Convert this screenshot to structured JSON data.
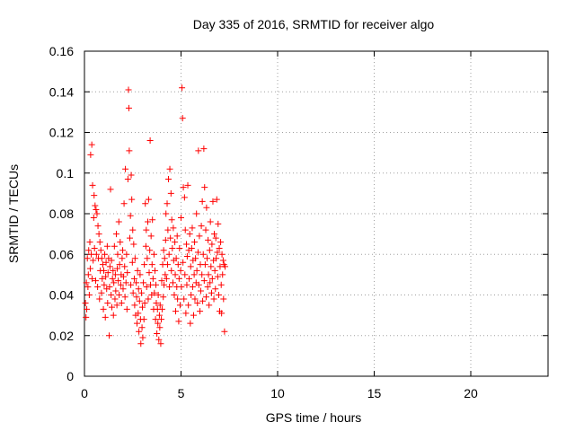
{
  "chart_data": {
    "type": "scatter",
    "title": "Day 335 of 2016, SRMTID for receiver algo",
    "xlabel": "GPS time / hours",
    "ylabel": "SRMTID / TECUs",
    "xlim": [
      0,
      24
    ],
    "ylim": [
      0,
      0.16
    ],
    "xticks": [
      0,
      5,
      10,
      15,
      20
    ],
    "xtick_labels": [
      "0",
      "5",
      "10",
      "15",
      "20"
    ],
    "yticks": [
      0,
      0.02,
      0.04,
      0.06,
      0.08,
      0.1,
      0.12,
      0.14,
      0.16
    ],
    "ytick_labels": [
      "0",
      "0.02",
      "0.04",
      "0.06",
      "0.08",
      "0.1",
      "0.12",
      "0.14",
      "0.16"
    ],
    "grid": true,
    "marker": "+",
    "marker_color": "#ff0000",
    "grid_color": "#a0a0a0",
    "series": [
      {
        "name": "SRMTID",
        "points": [
          [
            0.05,
            0.036
          ],
          [
            0.08,
            0.029
          ],
          [
            0.1,
            0.046
          ],
          [
            0.12,
            0.033
          ],
          [
            0.15,
            0.058
          ],
          [
            0.18,
            0.044
          ],
          [
            0.2,
            0.05
          ],
          [
            0.22,
            0.062
          ],
          [
            0.25,
            0.04
          ],
          [
            0.28,
            0.066
          ],
          [
            0.3,
            0.053
          ],
          [
            0.32,
            0.109
          ],
          [
            0.35,
            0.06
          ],
          [
            0.38,
            0.114
          ],
          [
            0.4,
            0.048
          ],
          [
            0.42,
            0.094
          ],
          [
            0.45,
            0.057
          ],
          [
            0.48,
            0.078
          ],
          [
            0.5,
            0.089
          ],
          [
            0.52,
            0.063
          ],
          [
            0.55,
            0.084
          ],
          [
            0.58,
            0.047
          ],
          [
            0.6,
            0.082
          ],
          [
            0.62,
            0.06
          ],
          [
            0.65,
            0.08
          ],
          [
            0.68,
            0.044
          ],
          [
            0.7,
            0.074
          ],
          [
            0.72,
            0.058
          ],
          [
            0.75,
            0.07
          ],
          [
            0.78,
            0.038
          ],
          [
            0.8,
            0.066
          ],
          [
            0.82,
            0.052
          ],
          [
            0.85,
            0.062
          ],
          [
            0.88,
            0.041
          ],
          [
            0.9,
            0.058
          ],
          [
            0.92,
            0.048
          ],
          [
            0.95,
            0.055
          ],
          [
            0.98,
            0.033
          ],
          [
            1.0,
            0.052
          ],
          [
            1.02,
            0.045
          ],
          [
            1.05,
            0.06
          ],
          [
            1.08,
            0.029
          ],
          [
            1.1,
            0.049
          ],
          [
            1.12,
            0.056
          ],
          [
            1.15,
            0.043
          ],
          [
            1.18,
            0.064
          ],
          [
            1.2,
            0.036
          ],
          [
            1.22,
            0.051
          ],
          [
            1.25,
            0.058
          ],
          [
            1.28,
            0.02
          ],
          [
            1.3,
            0.044
          ],
          [
            1.32,
            0.054
          ],
          [
            1.35,
            0.092
          ],
          [
            1.38,
            0.04
          ],
          [
            1.4,
            0.057
          ],
          [
            1.42,
            0.034
          ],
          [
            1.45,
            0.048
          ],
          [
            1.48,
            0.052
          ],
          [
            1.5,
            0.03
          ],
          [
            1.52,
            0.046
          ],
          [
            1.55,
            0.064
          ],
          [
            1.58,
            0.038
          ],
          [
            1.6,
            0.05
          ],
          [
            1.62,
            0.042
          ],
          [
            1.65,
            0.07
          ],
          [
            1.68,
            0.035
          ],
          [
            1.7,
            0.053
          ],
          [
            1.72,
            0.06
          ],
          [
            1.75,
            0.047
          ],
          [
            1.78,
            0.076
          ],
          [
            1.8,
            0.04
          ],
          [
            1.82,
            0.055
          ],
          [
            1.85,
            0.066
          ],
          [
            1.88,
            0.045
          ],
          [
            1.9,
            0.05
          ],
          [
            1.92,
            0.036
          ],
          [
            1.95,
            0.058
          ],
          [
            1.98,
            0.062
          ],
          [
            2.0,
            0.043
          ],
          [
            2.02,
            0.049
          ],
          [
            2.05,
            0.085
          ],
          [
            2.08,
            0.054
          ],
          [
            2.1,
            0.039
          ],
          [
            2.12,
            0.102
          ],
          [
            2.15,
            0.046
          ],
          [
            2.18,
            0.06
          ],
          [
            2.2,
            0.033
          ],
          [
            2.22,
            0.051
          ],
          [
            2.25,
            0.097
          ],
          [
            2.28,
            0.141
          ],
          [
            2.3,
            0.132
          ],
          [
            2.32,
            0.111
          ],
          [
            2.35,
            0.068
          ],
          [
            2.38,
            0.079
          ],
          [
            2.4,
            0.045
          ],
          [
            2.42,
            0.099
          ],
          [
            2.45,
            0.087
          ],
          [
            2.48,
            0.056
          ],
          [
            2.5,
            0.072
          ],
          [
            2.52,
            0.041
          ],
          [
            2.55,
            0.065
          ],
          [
            2.58,
            0.048
          ],
          [
            2.6,
            0.035
          ],
          [
            2.62,
            0.058
          ],
          [
            2.65,
            0.03
          ],
          [
            2.68,
            0.046
          ],
          [
            2.7,
            0.039
          ],
          [
            2.72,
            0.026
          ],
          [
            2.75,
            0.052
          ],
          [
            2.78,
            0.031
          ],
          [
            2.8,
            0.043
          ],
          [
            2.82,
            0.022
          ],
          [
            2.85,
            0.037
          ],
          [
            2.88,
            0.05
          ],
          [
            2.9,
            0.028
          ],
          [
            2.92,
            0.016
          ],
          [
            2.95,
            0.041
          ],
          [
            2.98,
            0.024
          ],
          [
            3.0,
            0.034
          ],
          [
            3.02,
            0.019
          ],
          [
            3.05,
            0.046
          ],
          [
            3.08,
            0.028
          ],
          [
            3.1,
            0.055
          ],
          [
            3.12,
            0.036
          ],
          [
            3.15,
            0.085
          ],
          [
            3.18,
            0.064
          ],
          [
            3.2,
            0.072
          ],
          [
            3.22,
            0.044
          ],
          [
            3.25,
            0.058
          ],
          [
            3.28,
            0.076
          ],
          [
            3.3,
            0.038
          ],
          [
            3.32,
            0.087
          ],
          [
            3.35,
            0.051
          ],
          [
            3.38,
            0.062
          ],
          [
            3.4,
            0.116
          ],
          [
            3.42,
            0.045
          ],
          [
            3.45,
            0.069
          ],
          [
            3.48,
            0.04
          ],
          [
            3.5,
            0.055
          ],
          [
            3.52,
            0.077
          ],
          [
            3.55,
            0.048
          ],
          [
            3.58,
            0.033
          ],
          [
            3.6,
            0.06
          ],
          [
            3.62,
            0.041
          ],
          [
            3.65,
            0.052
          ],
          [
            3.68,
            0.028
          ],
          [
            3.7,
            0.045
          ],
          [
            3.72,
            0.036
          ],
          [
            3.75,
            0.021
          ],
          [
            3.78,
            0.033
          ],
          [
            3.8,
            0.026
          ],
          [
            3.82,
            0.04
          ],
          [
            3.85,
            0.018
          ],
          [
            3.88,
            0.03
          ],
          [
            3.9,
            0.024
          ],
          [
            3.92,
            0.035
          ],
          [
            3.95,
            0.016
          ],
          [
            3.98,
            0.028
          ],
          [
            4.0,
            0.047
          ],
          [
            4.02,
            0.033
          ],
          [
            4.05,
            0.055
          ],
          [
            4.08,
            0.039
          ],
          [
            4.1,
            0.062
          ],
          [
            4.12,
            0.045
          ],
          [
            4.15,
            0.058
          ],
          [
            4.18,
            0.05
          ],
          [
            4.2,
            0.067
          ],
          [
            4.22,
            0.08
          ],
          [
            4.25,
            0.048
          ],
          [
            4.28,
            0.085
          ],
          [
            4.3,
            0.055
          ],
          [
            4.32,
            0.072
          ],
          [
            4.35,
            0.097
          ],
          [
            4.38,
            0.06
          ],
          [
            4.4,
            0.044
          ],
          [
            4.42,
            0.102
          ],
          [
            4.45,
            0.068
          ],
          [
            4.48,
            0.09
          ],
          [
            4.5,
            0.052
          ],
          [
            4.52,
            0.077
          ],
          [
            4.55,
            0.063
          ],
          [
            4.58,
            0.046
          ],
          [
            4.6,
            0.073
          ],
          [
            4.62,
            0.057
          ],
          [
            4.65,
            0.04
          ],
          [
            4.68,
            0.066
          ],
          [
            4.7,
            0.05
          ],
          [
            4.72,
            0.032
          ],
          [
            4.75,
            0.058
          ],
          [
            4.78,
            0.044
          ],
          [
            4.8,
            0.069
          ],
          [
            4.82,
            0.038
          ],
          [
            4.85,
            0.055
          ],
          [
            4.88,
            0.027
          ],
          [
            4.9,
            0.048
          ],
          [
            4.92,
            0.063
          ],
          [
            4.95,
            0.035
          ],
          [
            4.98,
            0.052
          ],
          [
            5.0,
            0.078
          ],
          [
            5.02,
            0.044
          ],
          [
            5.05,
            0.142
          ],
          [
            5.08,
            0.127
          ],
          [
            5.1,
            0.056
          ],
          [
            5.12,
            0.093
          ],
          [
            5.15,
            0.038
          ],
          [
            5.18,
            0.088
          ],
          [
            5.2,
            0.05
          ],
          [
            5.22,
            0.072
          ],
          [
            5.25,
            0.031
          ],
          [
            5.28,
            0.065
          ],
          [
            5.3,
            0.045
          ],
          [
            5.32,
            0.059
          ],
          [
            5.35,
            0.094
          ],
          [
            5.38,
            0.035
          ],
          [
            5.4,
            0.062
          ],
          [
            5.42,
            0.048
          ],
          [
            5.45,
            0.07
          ],
          [
            5.48,
            0.026
          ],
          [
            5.5,
            0.054
          ],
          [
            5.52,
            0.04
          ],
          [
            5.55,
            0.063
          ],
          [
            5.58,
            0.073
          ],
          [
            5.6,
            0.044
          ],
          [
            5.62,
            0.057
          ],
          [
            5.65,
            0.03
          ],
          [
            5.68,
            0.05
          ],
          [
            5.7,
            0.066
          ],
          [
            5.72,
            0.038
          ],
          [
            5.75,
            0.058
          ],
          [
            5.78,
            0.046
          ],
          [
            5.8,
            0.08
          ],
          [
            5.82,
            0.052
          ],
          [
            5.85,
            0.036
          ],
          [
            5.88,
            0.061
          ],
          [
            5.9,
            0.111
          ],
          [
            5.92,
            0.045
          ],
          [
            5.95,
            0.069
          ],
          [
            5.98,
            0.032
          ],
          [
            6.0,
            0.055
          ],
          [
            6.02,
            0.042
          ],
          [
            6.05,
            0.074
          ],
          [
            6.08,
            0.05
          ],
          [
            6.1,
            0.086
          ],
          [
            6.12,
            0.037
          ],
          [
            6.15,
            0.06
          ],
          [
            6.18,
            0.112
          ],
          [
            6.2,
            0.047
          ],
          [
            6.22,
            0.093
          ],
          [
            6.25,
            0.055
          ],
          [
            6.28,
            0.072
          ],
          [
            6.3,
            0.039
          ],
          [
            6.32,
            0.083
          ],
          [
            6.35,
            0.058
          ],
          [
            6.38,
            0.044
          ],
          [
            6.4,
            0.067
          ],
          [
            6.42,
            0.05
          ],
          [
            6.45,
            0.035
          ],
          [
            6.48,
            0.062
          ],
          [
            6.5,
            0.046
          ],
          [
            6.52,
            0.076
          ],
          [
            6.55,
            0.054
          ],
          [
            6.58,
            0.041
          ],
          [
            6.6,
            0.065
          ],
          [
            6.62,
            0.048
          ],
          [
            6.65,
            0.086
          ],
          [
            6.68,
            0.057
          ],
          [
            6.7,
            0.038
          ],
          [
            6.72,
            0.07
          ],
          [
            6.75,
            0.052
          ],
          [
            6.78,
            0.043
          ],
          [
            6.8,
            0.068
          ],
          [
            6.82,
            0.058
          ],
          [
            6.85,
            0.087
          ],
          [
            6.88,
            0.061
          ],
          [
            6.9,
            0.049
          ],
          [
            6.92,
            0.075
          ],
          [
            6.95,
            0.04
          ],
          [
            6.98,
            0.063
          ],
          [
            7.0,
            0.032
          ],
          [
            7.02,
            0.054
          ],
          [
            7.05,
            0.066
          ],
          [
            7.08,
            0.045
          ],
          [
            7.1,
            0.031
          ],
          [
            7.12,
            0.06
          ],
          [
            7.15,
            0.05
          ],
          [
            7.18,
            0.057
          ],
          [
            7.2,
            0.038
          ],
          [
            7.22,
            0.055
          ],
          [
            7.25,
            0.022
          ],
          [
            7.28,
            0.054
          ]
        ]
      }
    ]
  }
}
